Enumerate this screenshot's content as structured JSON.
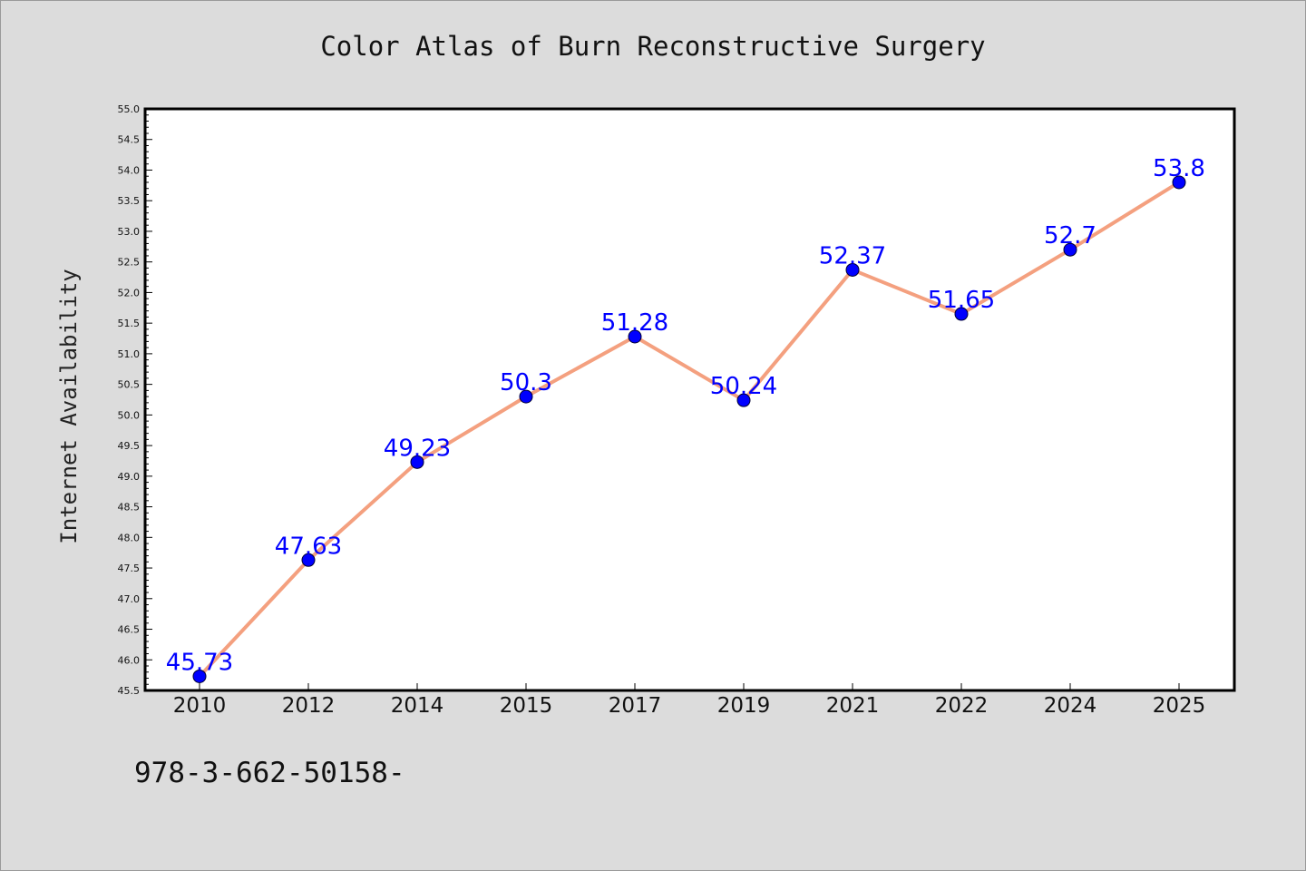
{
  "chart_data": {
    "type": "line",
    "title": "Color Atlas of Burn Reconstructive Surgery",
    "xlabel": "",
    "ylabel": "Internet Availability",
    "categories": [
      "2010",
      "2012",
      "2014",
      "2015",
      "2017",
      "2019",
      "2021",
      "2022",
      "2024",
      "2025"
    ],
    "values": [
      45.73,
      47.63,
      49.23,
      50.3,
      51.28,
      50.24,
      52.37,
      51.65,
      52.7,
      53.8
    ],
    "data_labels": [
      "45.73",
      "47.63",
      "49.23",
      "50.3",
      "51.28",
      "50.24",
      "52.37",
      "51.65",
      "52.7",
      "53.8"
    ],
    "ylim": [
      45.5,
      55.0
    ],
    "yticks": [
      "45.5",
      "46.0",
      "46.5",
      "47.0",
      "47.5",
      "48.0",
      "48.5",
      "49.0",
      "49.5",
      "50.0",
      "50.5",
      "51.0",
      "51.5",
      "52.0",
      "52.5",
      "53.0",
      "53.5",
      "54.0",
      "54.5",
      "55.0"
    ],
    "grid": false,
    "colors": {
      "line": "#f4a07f",
      "marker": "#0000ff",
      "label": "#0000ff",
      "plot_bg": "#ffffff",
      "page_bg": "#dcdcdc"
    }
  },
  "footer_text": "978-3-662-50158-"
}
